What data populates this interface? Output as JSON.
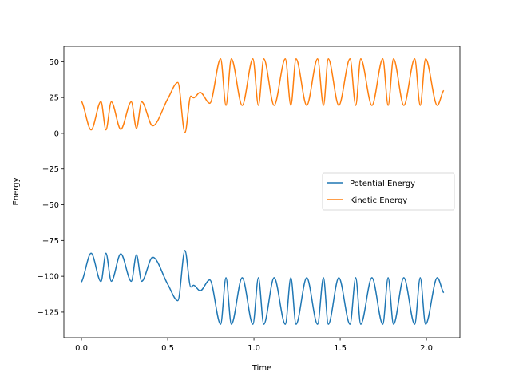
{
  "chart_data": {
    "type": "line",
    "title": "",
    "xlabel": "Time",
    "ylabel": "Energy",
    "xlim": [
      -0.102,
      2.194
    ],
    "ylim": [
      -142.9,
      60.8
    ],
    "xticks": [
      0.0,
      0.5,
      1.0,
      1.5,
      2.0
    ],
    "xtick_labels": [
      "0.0",
      "0.5",
      "1.0",
      "1.5",
      "2.0"
    ],
    "yticks": [
      50,
      25,
      0,
      -25,
      -50,
      -75,
      -100,
      -125
    ],
    "ytick_labels": [
      "50",
      "25",
      "0",
      "−25",
      "−50",
      "−75",
      "−100",
      "−125"
    ],
    "grid": false,
    "legend_position": "center-right",
    "x": [
      0,
      0.056,
      0.113,
      0.142,
      0.173,
      0.228,
      0.289,
      0.319,
      0.349,
      0.413,
      0.5,
      0.559,
      0.6,
      0.634,
      0.65,
      0.688,
      0.744,
      0.807,
      0.838,
      0.869,
      0.932,
      0.994,
      1.026,
      1.057,
      1.117,
      1.182,
      1.214,
      1.244,
      1.306,
      1.369,
      1.403,
      1.431,
      1.492,
      1.557,
      1.59,
      1.619,
      1.684,
      1.747,
      1.778,
      1.809,
      1.869,
      1.932,
      1.964,
      1.995,
      2.063,
      2.1
    ],
    "series": [
      {
        "name": "Potential Energy",
        "color": "#1f77b4",
        "values": [
          -104,
          -83.9,
          -103.7,
          -83.9,
          -103.5,
          -84.3,
          -103.5,
          -85,
          -103.5,
          -86.7,
          -105.5,
          -117,
          -82,
          -107.5,
          -106.3,
          -110.1,
          -102.5,
          -133.5,
          -101,
          -133.5,
          -101,
          -133.5,
          -101,
          -133.5,
          -101,
          -133.5,
          -101,
          -133.5,
          -101,
          -133.5,
          -101,
          -133.5,
          -101,
          -133.5,
          -101,
          -133.5,
          -101,
          -133.5,
          -101,
          -133.5,
          -101,
          -133.5,
          -101,
          -133.5,
          -101,
          -111.5
        ]
      },
      {
        "name": "Kinetic Energy",
        "color": "#ff7f0e",
        "values": [
          22.5,
          2.4,
          22.2,
          2.4,
          22,
          2.8,
          22,
          3.5,
          22,
          5.2,
          24,
          35.5,
          0.5,
          26,
          24.8,
          28.6,
          21,
          52,
          19.5,
          52,
          19.5,
          52,
          19.5,
          52,
          19.5,
          52,
          19.5,
          52,
          19.5,
          52,
          19.5,
          52,
          19.5,
          52,
          19.5,
          52,
          19.5,
          52,
          19.5,
          52,
          19.5,
          52,
          19.5,
          52,
          19.5,
          30
        ]
      }
    ]
  }
}
